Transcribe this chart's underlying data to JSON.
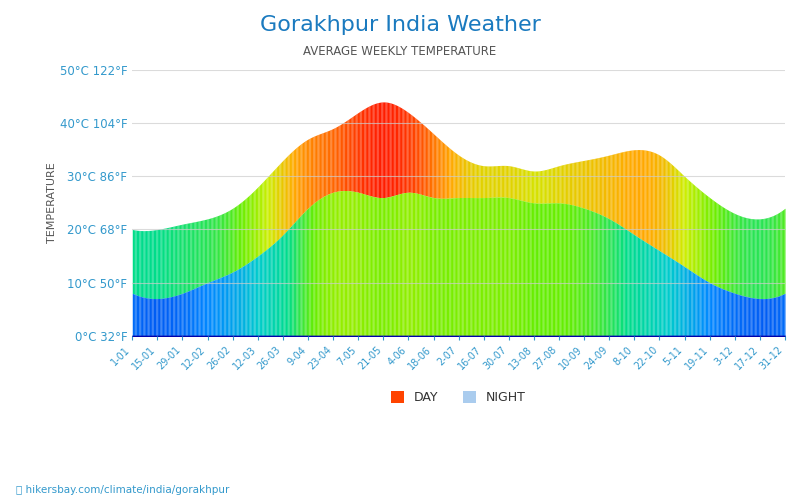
{
  "title": "Gorakhpur India Weather",
  "subtitle": "AVERAGE WEEKLY TEMPERATURE",
  "ylabel": "TEMPERATURE",
  "footer": "hikersbay.com/climate/india/gorakhpur",
  "title_color": "#1a7abf",
  "subtitle_color": "#555555",
  "ylabel_color": "#555555",
  "axis_label_color": "#3399cc",
  "tick_color": "#3399cc",
  "background_color": "#ffffff",
  "ylim": [
    0,
    50
  ],
  "yticks": [
    0,
    10,
    20,
    30,
    40,
    50
  ],
  "ytick_labels": [
    "0°C 32°F",
    "10°C 50°F",
    "20°C 68°F",
    "30°C 86°F",
    "40°C 104°F",
    "50°C 122°F"
  ],
  "xtick_labels": [
    "1-01",
    "15-01",
    "29-01",
    "12-02",
    "26-02",
    "12-03",
    "26-03",
    "9-04",
    "23-04",
    "7-05",
    "21-05",
    "4-06",
    "18-06",
    "2-07",
    "16-07",
    "30-07",
    "13-08",
    "27-08",
    "10-09",
    "24-09",
    "8-10",
    "22-10",
    "5-11",
    "19-11",
    "3-12",
    "17-12",
    "31-12"
  ],
  "day_temps": [
    20,
    20,
    21,
    22,
    24,
    28,
    33,
    37,
    39,
    42,
    44,
    42,
    38,
    34,
    32,
    32,
    31,
    32,
    33,
    34,
    35,
    34,
    30,
    26,
    23,
    22,
    24
  ],
  "night_temps": [
    8,
    7,
    8,
    10,
    12,
    15,
    19,
    24,
    27,
    27,
    26,
    27,
    26,
    26,
    26,
    26,
    25,
    25,
    24,
    22,
    19,
    16,
    13,
    10,
    8,
    7,
    8
  ],
  "grid_color": "#cccccc",
  "grid_alpha": 0.7,
  "legend_day_color": "#ff4400",
  "legend_night_color": "#aaccee"
}
